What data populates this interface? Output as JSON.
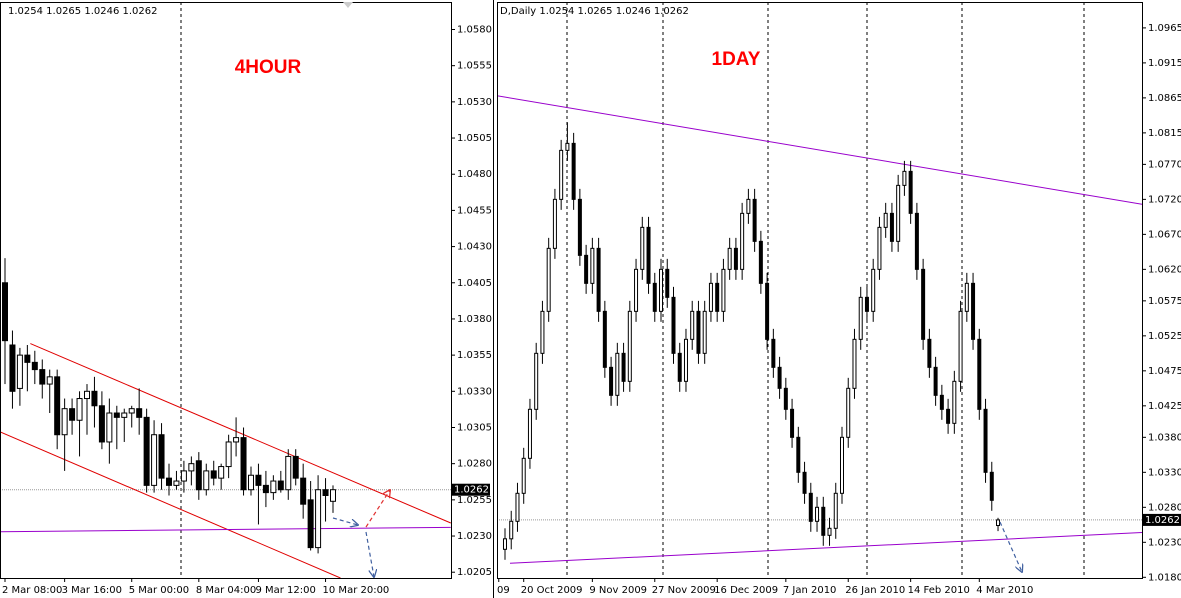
{
  "chart_data": [
    {
      "type": "candlestick",
      "header": "1.0254 1.0265 1.0246 1.0262",
      "label": "4HOUR",
      "open": [
        1.0405,
        1.0362,
        1.0332,
        1.0355,
        1.035,
        1.0345,
        1.0335,
        1.034,
        1.03,
        1.0318,
        1.031,
        1.0325,
        1.033,
        1.032,
        1.0295,
        1.0315,
        1.0312,
        1.0315,
        1.0318,
        1.0312,
        1.0265,
        1.03,
        1.027,
        1.0265,
        1.0268,
        1.0275,
        1.0282,
        1.0262,
        1.0275,
        1.027,
        1.0278,
        1.0295,
        1.0298,
        1.0262,
        1.0272,
        1.0265,
        1.026,
        1.0268,
        1.0262,
        1.0285,
        1.027,
        1.0255,
        1.0222,
        1.0262,
        1.0254
      ],
      "high": [
        1.0422,
        1.0372,
        1.036,
        1.0362,
        1.0358,
        1.0352,
        1.0345,
        1.0345,
        1.0325,
        1.0325,
        1.033,
        1.0335,
        1.034,
        1.033,
        1.0325,
        1.032,
        1.0318,
        1.032,
        1.0332,
        1.0318,
        1.031,
        1.0308,
        1.028,
        1.0275,
        1.0282,
        1.0285,
        1.0288,
        1.028,
        1.0282,
        1.028,
        1.03,
        1.0312,
        1.0305,
        1.0278,
        1.028,
        1.0275,
        1.0272,
        1.0275,
        1.029,
        1.029,
        1.028,
        1.0268,
        1.0272,
        1.027,
        1.0265
      ],
      "low": [
        1.0335,
        1.0318,
        1.032,
        1.033,
        1.0335,
        1.0325,
        1.0315,
        1.029,
        1.0275,
        1.03,
        1.0285,
        1.03,
        1.0305,
        1.029,
        1.028,
        1.029,
        1.0295,
        1.0305,
        1.03,
        1.026,
        1.026,
        1.0262,
        1.0258,
        1.0262,
        1.026,
        1.0265,
        1.0255,
        1.0258,
        1.0265,
        1.0262,
        1.027,
        1.0285,
        1.0258,
        1.0258,
        1.0238,
        1.025,
        1.0255,
        1.026,
        1.0255,
        1.0265,
        1.0242,
        1.022,
        1.0218,
        1.024,
        1.0246
      ],
      "close": [
        1.0365,
        1.033,
        1.0355,
        1.035,
        1.0345,
        1.0335,
        1.034,
        1.03,
        1.0318,
        1.031,
        1.0325,
        1.033,
        1.032,
        1.0295,
        1.0315,
        1.0312,
        1.0315,
        1.0318,
        1.0312,
        1.0265,
        1.03,
        1.027,
        1.0265,
        1.0268,
        1.0275,
        1.028,
        1.0262,
        1.0275,
        1.027,
        1.0278,
        1.0295,
        1.0298,
        1.0262,
        1.0272,
        1.0265,
        1.026,
        1.0268,
        1.0262,
        1.0285,
        1.027,
        1.0252,
        1.0222,
        1.0262,
        1.0258,
        1.0262
      ],
      "xlim": [
        -0.67,
        59.83
      ],
      "ylim": [
        1.0201,
        1.0599
      ],
      "xticks": [
        {
          "value": 0,
          "label": "2 Mar 08:00"
        },
        {
          "value": 8,
          "label": "3 Mar 16:00"
        },
        {
          "value": 17,
          "label": "5 Mar 00:00"
        },
        {
          "value": 26,
          "label": "8 Mar 04:00"
        },
        {
          "value": 34,
          "label": "9 Mar 12:00"
        },
        {
          "value": 43,
          "label": "10 Mar 20:00"
        }
      ],
      "yticks": [
        {
          "value": 1.058,
          "label": "1.0580"
        },
        1.0555,
        {
          "value": 1.053,
          "label": "1.0530"
        },
        1.0505,
        {
          "value": 1.048,
          "label": "1.0480"
        },
        1.0455,
        {
          "value": 1.043,
          "label": "1.0430"
        },
        1.0405,
        {
          "value": 1.038,
          "label": "1.0380"
        },
        1.0355,
        {
          "value": 1.033,
          "label": "1.0330"
        },
        1.0305,
        {
          "value": 1.028,
          "label": "1.0280"
        },
        1.0255,
        {
          "value": 1.023,
          "label": "1.0230"
        },
        1.0205
      ],
      "last_price": 1.0262,
      "trendlines": [
        {
          "color": "#e00000",
          "points": [
            [
              3.4,
              1.0363
            ],
            [
              59.8,
              1.0239
            ]
          ]
        },
        {
          "color": "#e00000",
          "points": [
            [
              -0.67,
              1.0302
            ],
            [
              45,
              1.0201
            ]
          ]
        },
        {
          "color": "#9900cc",
          "points": [
            [
              -0.67,
              1.0233
            ],
            [
              59.8,
              1.0236
            ]
          ]
        }
      ]
    },
    {
      "type": "candlestick",
      "header": "D,Daily  1.0254 1.0265 1.0246 1.0262",
      "label": "1DAY",
      "open": [
        1.022,
        1.0235,
        1.026,
        1.03,
        1.035,
        1.042,
        1.05,
        1.056,
        1.065,
        1.072,
        1.079,
        1.08,
        1.072,
        1.064,
        1.06,
        1.065,
        1.056,
        1.048,
        1.044,
        1.05,
        1.046,
        1.056,
        1.062,
        1.068,
        1.06,
        1.056,
        1.062,
        1.058,
        1.05,
        1.046,
        1.052,
        1.056,
        1.05,
        1.056,
        1.06,
        1.056,
        1.062,
        1.065,
        1.062,
        1.07,
        1.072,
        1.066,
        1.06,
        1.052,
        1.048,
        1.045,
        1.042,
        1.038,
        1.033,
        1.03,
        1.026,
        1.028,
        1.024,
        1.025,
        1.03,
        1.038,
        1.045,
        1.052,
        1.058,
        1.056,
        1.062,
        1.068,
        1.07,
        1.066,
        1.074,
        1.076,
        1.07,
        1.062,
        1.052,
        1.048,
        1.044,
        1.042,
        1.04,
        1.046,
        1.056,
        1.06,
        1.052,
        1.042,
        1.033,
        1.0254
      ],
      "high": [
        1.025,
        1.0275,
        1.0315,
        1.0365,
        1.0435,
        1.0515,
        1.0575,
        1.0665,
        1.0735,
        1.0805,
        1.083,
        1.0815,
        1.0735,
        1.0655,
        1.0665,
        1.0665,
        1.0575,
        1.0495,
        1.0515,
        1.0515,
        1.0575,
        1.0635,
        1.0695,
        1.0695,
        1.0615,
        1.0635,
        1.0635,
        1.0595,
        1.0515,
        1.0535,
        1.0575,
        1.0575,
        1.0575,
        1.0615,
        1.0615,
        1.0635,
        1.0665,
        1.0665,
        1.0715,
        1.0735,
        1.0735,
        1.0675,
        1.0615,
        1.0535,
        1.0495,
        1.0465,
        1.0435,
        1.0395,
        1.0345,
        1.0315,
        1.0295,
        1.0295,
        1.0265,
        1.0315,
        1.0395,
        1.0465,
        1.0535,
        1.0595,
        1.0595,
        1.0635,
        1.0695,
        1.0715,
        1.0715,
        1.0755,
        1.0775,
        1.0775,
        1.0715,
        1.0635,
        1.0535,
        1.0495,
        1.0455,
        1.0435,
        1.0475,
        1.0575,
        1.0615,
        1.0615,
        1.0535,
        1.0435,
        1.0345,
        1.0265
      ],
      "low": [
        1.0205,
        1.022,
        1.0245,
        1.0285,
        1.0335,
        1.0405,
        1.0485,
        1.0545,
        1.0635,
        1.0705,
        1.0775,
        1.0705,
        1.0625,
        1.0585,
        1.0585,
        1.0545,
        1.0465,
        1.0425,
        1.0425,
        1.0445,
        1.0445,
        1.0545,
        1.0605,
        1.0585,
        1.0545,
        1.0545,
        1.0565,
        1.0485,
        1.0445,
        1.0445,
        1.0505,
        1.0485,
        1.0485,
        1.0545,
        1.0545,
        1.0545,
        1.0605,
        1.0605,
        1.0605,
        1.0685,
        1.0645,
        1.0585,
        1.0505,
        1.0465,
        1.0435,
        1.0405,
        1.0365,
        1.0315,
        1.0285,
        1.0245,
        1.0245,
        1.0225,
        1.0225,
        1.0235,
        1.0285,
        1.0365,
        1.0435,
        1.0505,
        1.0545,
        1.0545,
        1.0605,
        1.0665,
        1.0645,
        1.0645,
        1.0725,
        1.0685,
        1.0605,
        1.0505,
        1.0465,
        1.0425,
        1.0405,
        1.0385,
        1.0385,
        1.0445,
        1.0545,
        1.0505,
        1.0405,
        1.0315,
        1.0275,
        1.0246
      ],
      "close": [
        1.0235,
        1.026,
        1.03,
        1.035,
        1.042,
        1.05,
        1.056,
        1.065,
        1.072,
        1.079,
        1.08,
        1.072,
        1.064,
        1.06,
        1.065,
        1.056,
        1.048,
        1.044,
        1.05,
        1.046,
        1.056,
        1.062,
        1.068,
        1.06,
        1.056,
        1.062,
        1.058,
        1.05,
        1.046,
        1.052,
        1.056,
        1.05,
        1.056,
        1.06,
        1.056,
        1.062,
        1.065,
        1.062,
        1.07,
        1.072,
        1.066,
        1.06,
        1.052,
        1.048,
        1.045,
        1.042,
        1.038,
        1.033,
        1.03,
        1.026,
        1.028,
        1.024,
        1.025,
        1.03,
        1.038,
        1.045,
        1.052,
        1.058,
        1.056,
        1.062,
        1.068,
        1.07,
        1.066,
        1.074,
        1.076,
        1.07,
        1.062,
        1.052,
        1.048,
        1.044,
        1.042,
        1.04,
        1.046,
        1.056,
        1.06,
        1.052,
        1.042,
        1.033,
        1.029,
        1.0262
      ],
      "xlim": [
        -1.28,
        102.07
      ],
      "ylim": [
        1.0179,
        1.1002
      ],
      "xticks": [
        {
          "value": -1,
          "label": "09"
        },
        {
          "value": 3,
          "label": "20 Oct 2009"
        },
        {
          "value": 14,
          "label": "9 Nov 2009"
        },
        {
          "value": 24,
          "label": "27 Nov 2009"
        },
        {
          "value": 34,
          "label": "16 Dec 2009"
        },
        {
          "value": 45,
          "label": "7 Jan 2010"
        },
        {
          "value": 55,
          "label": "26 Jan 2010"
        },
        {
          "value": 65,
          "label": "14 Feb 2010"
        },
        {
          "value": 76,
          "label": "4 Mar 2010"
        }
      ],
      "yticks": [
        1.0965,
        1.0915,
        1.0865,
        1.0815,
        {
          "value": 1.077,
          "label": "1.0770"
        },
        {
          "value": 1.072,
          "label": "1.0720"
        },
        {
          "value": 1.067,
          "label": "1.0670"
        },
        {
          "value": 1.062,
          "label": "1.0620"
        },
        1.0575,
        1.0525,
        1.0475,
        1.0425,
        {
          "value": 1.038,
          "label": "1.0380"
        },
        {
          "value": 1.033,
          "label": "1.0330"
        },
        {
          "value": 1.028,
          "label": "1.0280"
        },
        {
          "value": 1.023,
          "label": "1.0230"
        },
        {
          "value": 1.018,
          "label": "1.0180"
        }
      ],
      "last_price": 1.0262,
      "trendlines": [
        {
          "color": "#9900cc",
          "points": [
            [
              -1.28,
              1.0868
            ],
            [
              102.07,
              1.0713
            ]
          ]
        },
        {
          "color": "#9900cc",
          "points": [
            [
              0.8,
              1.02
            ],
            [
              102.07,
              1.0244
            ]
          ]
        }
      ]
    }
  ]
}
